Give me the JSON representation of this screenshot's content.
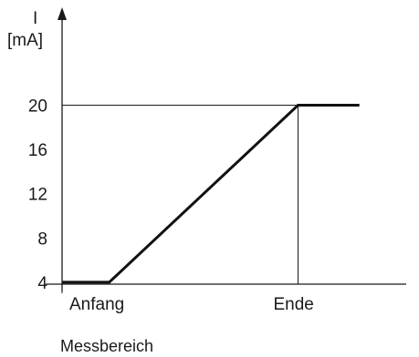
{
  "chart_data": {
    "type": "line",
    "title": "",
    "ylabel_line1": "I",
    "ylabel_line2": "[mA]",
    "xlabel": "Messbereich",
    "ylim": [
      0,
      22
    ],
    "yticks": [
      "4",
      "8",
      "12",
      "16",
      "20"
    ],
    "ytick_values": [
      4,
      8,
      12,
      16,
      20
    ],
    "xmarkers": [
      {
        "label": "Anfang",
        "x": 1
      },
      {
        "label": "Ende",
        "x": 5
      }
    ],
    "xlim": [
      0,
      6.4
    ],
    "series": [
      {
        "points": [
          [
            0,
            4
          ],
          [
            1,
            4
          ],
          [
            5,
            20
          ],
          [
            6.3,
            20
          ]
        ]
      }
    ],
    "grid": false
  }
}
